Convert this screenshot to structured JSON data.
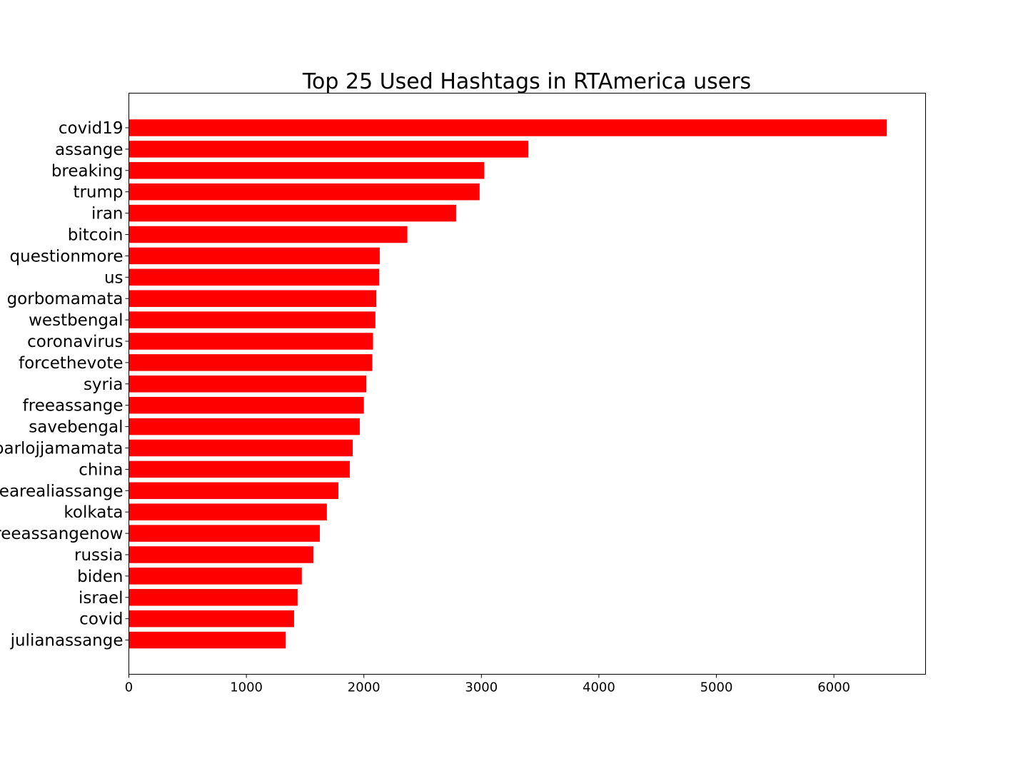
{
  "chart_data": {
    "type": "bar",
    "orientation": "horizontal",
    "title": "Top 25 Used Hashtags in RTAmerica users",
    "xlabel": "",
    "ylabel": "",
    "categories": [
      "covid19",
      "assange",
      "breaking",
      "trump",
      "iran",
      "bitcoin",
      "questionmore",
      "us",
      "gorbomamata",
      "westbengal",
      "coronavirus",
      "forcethevote",
      "syria",
      "freeassange",
      "savebengal",
      "barlojjamamata",
      "china",
      "wearealiassange",
      "kolkata",
      "freeassangenow",
      "russia",
      "biden",
      "israel",
      "covid",
      "julianassange"
    ],
    "values": [
      6450,
      3400,
      3025,
      2985,
      2785,
      2370,
      2135,
      2130,
      2105,
      2098,
      2078,
      2072,
      2020,
      2000,
      1965,
      1905,
      1880,
      1783,
      1685,
      1625,
      1570,
      1472,
      1436,
      1406,
      1335
    ],
    "xlim": [
      0,
      6780
    ],
    "xticks": [
      0,
      1000,
      2000,
      3000,
      4000,
      5000,
      6000
    ],
    "bar_color": "#ff0000",
    "grid": false,
    "legend": "none"
  }
}
